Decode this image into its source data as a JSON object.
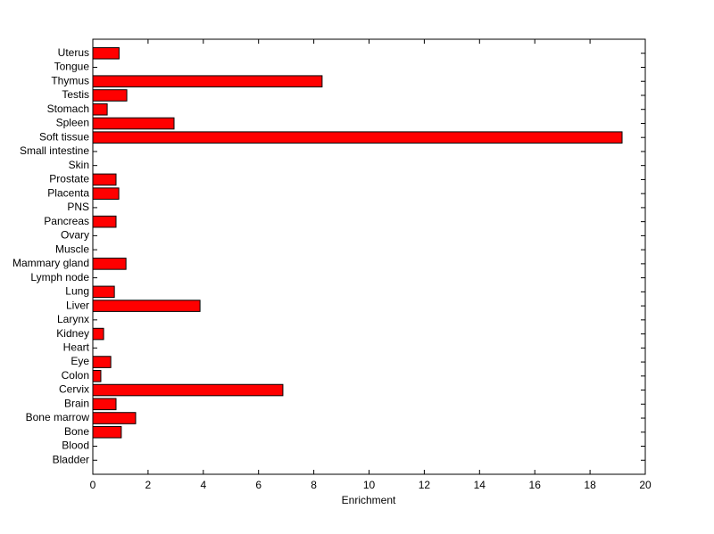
{
  "chart_data": {
    "type": "barh",
    "xlabel": "Enrichment",
    "categories": [
      "Bladder",
      "Blood",
      "Bone",
      "Bone marrow",
      "Brain",
      "Cervix",
      "Colon",
      "Eye",
      "Heart",
      "Kidney",
      "Larynx",
      "Liver",
      "Lung",
      "Lymph node",
      "Mammary gland",
      "Muscle",
      "Ovary",
      "Pancreas",
      "PNS",
      "Placenta",
      "Prostate",
      "Skin",
      "Small intestine",
      "Soft tissue",
      "Spleen",
      "Stomach",
      "Testis",
      "Thymus",
      "Tongue",
      "Uterus"
    ],
    "values": [
      0,
      0,
      1.03,
      1.55,
      0.84,
      6.88,
      0.29,
      0.65,
      0,
      0.39,
      0,
      3.88,
      0.78,
      0,
      1.2,
      0,
      0,
      0.84,
      0,
      0.94,
      0.84,
      0,
      0,
      19.16,
      2.94,
      0.52,
      1.23,
      8.3,
      0,
      0.95
    ],
    "color": "#ff0000",
    "xlim": [
      0,
      20
    ],
    "xticks": [
      0,
      2,
      4,
      6,
      8,
      10,
      12,
      14,
      16,
      18,
      20
    ]
  }
}
